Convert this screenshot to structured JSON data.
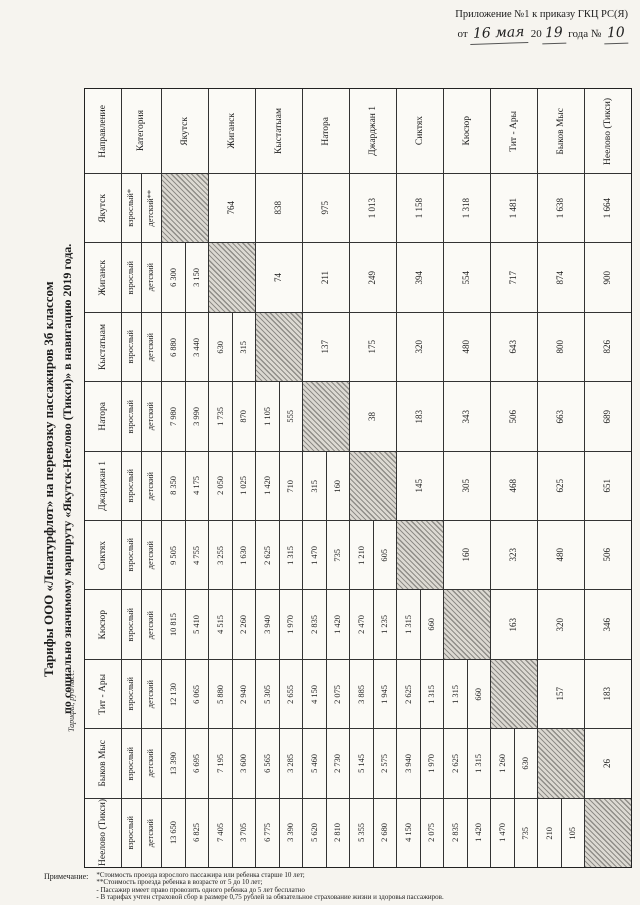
{
  "appendix": {
    "line1": "Приложение №1 к приказу ГКЦ РС(Я)",
    "ot": "от",
    "day": "16 мая",
    "century": "20",
    "year": "19",
    "goda": "года №",
    "num": "10"
  },
  "title": {
    "line1": "Тарифы ООО «Ленатурфлот» на перевозку пассажиров 3б классом",
    "line2": "по социально значимому маршруту «Якутск-Неелово (Тикси)» в навигацию 2019 года."
  },
  "table": {
    "units_label": "Тарифы, руб/пасс.",
    "headers": [
      "Направление",
      "Категория",
      "Якутск",
      "Жиганск",
      "Кыстатыам",
      "Натора",
      "Джарджан 1",
      "Сиктях",
      "Кюсюр",
      "Тит - Ары",
      "Быков Мыс",
      "Неелово (Тикси)"
    ],
    "rows": [
      {
        "name": "Якутск",
        "adult": "взрослый*",
        "child": "детский**",
        "cells": [
          [
            "s"
          ],
          [
            "d",
            "764"
          ],
          [
            "d",
            "838"
          ],
          [
            "d",
            "975"
          ],
          [
            "d",
            "1 013"
          ],
          [
            "d",
            "1 158"
          ],
          [
            "d",
            "1 318"
          ],
          [
            "d",
            "1 481"
          ],
          [
            "d",
            "1 638"
          ],
          [
            "d",
            "1 664"
          ]
        ]
      },
      {
        "name": "Жиганск",
        "adult": "взрослый",
        "child": "детский",
        "cells": [
          [
            "f",
            "6 300",
            "3 150"
          ],
          [
            "s"
          ],
          [
            "d",
            "74"
          ],
          [
            "d",
            "211"
          ],
          [
            "d",
            "249"
          ],
          [
            "d",
            "394"
          ],
          [
            "d",
            "554"
          ],
          [
            "d",
            "717"
          ],
          [
            "d",
            "874"
          ],
          [
            "d",
            "900"
          ]
        ]
      },
      {
        "name": "Кыстатыам",
        "adult": "взрослый",
        "child": "детский",
        "cells": [
          [
            "f",
            "6 880",
            "3 440"
          ],
          [
            "f",
            "630",
            "315"
          ],
          [
            "s"
          ],
          [
            "d",
            "137"
          ],
          [
            "d",
            "175"
          ],
          [
            "d",
            "320"
          ],
          [
            "d",
            "480"
          ],
          [
            "d",
            "643"
          ],
          [
            "d",
            "800"
          ],
          [
            "d",
            "826"
          ]
        ]
      },
      {
        "name": "Натора",
        "adult": "взрослый",
        "child": "детский",
        "cells": [
          [
            "f",
            "7 980",
            "3 990"
          ],
          [
            "f",
            "1 735",
            "870"
          ],
          [
            "f",
            "1 105",
            "555"
          ],
          [
            "s"
          ],
          [
            "d",
            "38"
          ],
          [
            "d",
            "183"
          ],
          [
            "d",
            "343"
          ],
          [
            "d",
            "506"
          ],
          [
            "d",
            "663"
          ],
          [
            "d",
            "689"
          ]
        ]
      },
      {
        "name": "Джарджан 1",
        "adult": "взрослый",
        "child": "детский",
        "cells": [
          [
            "f",
            "8 350",
            "4 175"
          ],
          [
            "f",
            "2 050",
            "1 025"
          ],
          [
            "f",
            "1 420",
            "710"
          ],
          [
            "f",
            "315",
            "160"
          ],
          [
            "s"
          ],
          [
            "d",
            "145"
          ],
          [
            "d",
            "305"
          ],
          [
            "d",
            "468"
          ],
          [
            "d",
            "625"
          ],
          [
            "d",
            "651"
          ]
        ]
      },
      {
        "name": "Сиктях",
        "adult": "взрослый",
        "child": "детский",
        "cells": [
          [
            "f",
            "9 505",
            "4 755"
          ],
          [
            "f",
            "3 255",
            "1 630"
          ],
          [
            "f",
            "2 625",
            "1 315"
          ],
          [
            "f",
            "1 470",
            "735"
          ],
          [
            "f",
            "1 210",
            "605"
          ],
          [
            "s"
          ],
          [
            "d",
            "160"
          ],
          [
            "d",
            "323"
          ],
          [
            "d",
            "480"
          ],
          [
            "d",
            "506"
          ]
        ]
      },
      {
        "name": "Кюсюр",
        "adult": "взрослый",
        "child": "детский",
        "cells": [
          [
            "f",
            "10 815",
            "5 410"
          ],
          [
            "f",
            "4 515",
            "2 260"
          ],
          [
            "f",
            "3 940",
            "1 970"
          ],
          [
            "f",
            "2 835",
            "1 420"
          ],
          [
            "f",
            "2 470",
            "1 235"
          ],
          [
            "f",
            "1 315",
            "660"
          ],
          [
            "s"
          ],
          [
            "d",
            "163"
          ],
          [
            "d",
            "320"
          ],
          [
            "d",
            "346"
          ]
        ]
      },
      {
        "name": "Тит - Ары",
        "adult": "взрослый",
        "child": "детский",
        "cells": [
          [
            "f",
            "12 130",
            "6 065"
          ],
          [
            "f",
            "5 880",
            "2 940"
          ],
          [
            "f",
            "5 305",
            "2 655"
          ],
          [
            "f",
            "4 150",
            "2 075"
          ],
          [
            "f",
            "3 885",
            "1 945"
          ],
          [
            "f",
            "2 625",
            "1 315"
          ],
          [
            "f",
            "1 315",
            "660"
          ],
          [
            "s"
          ],
          [
            "d",
            "157"
          ],
          [
            "d",
            "183"
          ]
        ]
      },
      {
        "name": "Быков Мыс",
        "adult": "взрослый",
        "child": "детский",
        "cells": [
          [
            "f",
            "13 390",
            "6 695"
          ],
          [
            "f",
            "7 195",
            "3 600"
          ],
          [
            "f",
            "6 565",
            "3 285"
          ],
          [
            "f",
            "5 460",
            "2 730"
          ],
          [
            "f",
            "5 145",
            "2 575"
          ],
          [
            "f",
            "3 940",
            "1 970"
          ],
          [
            "f",
            "2 625",
            "1 315"
          ],
          [
            "f",
            "1 260",
            "630"
          ],
          [
            "s"
          ],
          [
            "d",
            "26"
          ]
        ]
      },
      {
        "name": "Неелово (Тикси)",
        "adult": "взрослый",
        "child": "детский",
        "cells": [
          [
            "f",
            "13 650",
            "6 825"
          ],
          [
            "f",
            "7 405",
            "3 705"
          ],
          [
            "f",
            "6 775",
            "3 390"
          ],
          [
            "f",
            "5 620",
            "2 810"
          ],
          [
            "f",
            "5 355",
            "2 680"
          ],
          [
            "f",
            "4 150",
            "2 075"
          ],
          [
            "f",
            "2 835",
            "1 420"
          ],
          [
            "f",
            "1 470",
            "735"
          ],
          [
            "f",
            "210",
            "105"
          ],
          [
            "s"
          ]
        ]
      }
    ]
  },
  "notes": {
    "label": "Примечание:",
    "items": [
      "*Стоимость проезда взрослого пассажира или ребенка старше 10 лет;",
      "**Стоимость проезда ребенка в возрасте от 5 до 10 лет;",
      "- Пассажир имеет право провозить одного ребенка до 5 лет бесплатно",
      "- В тарифах учтен страховой сбор в размере 0,75 рублей за обязательное страхование жизни и здоровья пассажиров."
    ]
  }
}
